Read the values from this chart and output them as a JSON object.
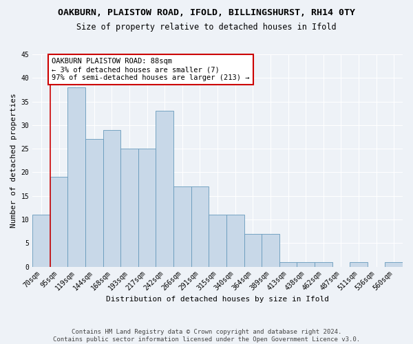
{
  "title1": "OAKBURN, PLAISTOW ROAD, IFOLD, BILLINGSHURST, RH14 0TY",
  "title2": "Size of property relative to detached houses in Ifold",
  "xlabel": "Distribution of detached houses by size in Ifold",
  "ylabel": "Number of detached properties",
  "categories": [
    "70sqm",
    "95sqm",
    "119sqm",
    "144sqm",
    "168sqm",
    "193sqm",
    "217sqm",
    "242sqm",
    "266sqm",
    "291sqm",
    "315sqm",
    "340sqm",
    "364sqm",
    "389sqm",
    "413sqm",
    "438sqm",
    "462sqm",
    "487sqm",
    "511sqm",
    "536sqm",
    "560sqm"
  ],
  "values": [
    11,
    19,
    38,
    27,
    29,
    25,
    25,
    33,
    17,
    17,
    11,
    11,
    7,
    7,
    1,
    1,
    1,
    0,
    1,
    0,
    1
  ],
  "bar_color": "#c8d8e8",
  "bar_edge_color": "#6699bb",
  "annotation_title": "OAKBURN PLAISTOW ROAD: 88sqm",
  "annotation_line1": "← 3% of detached houses are smaller (7)",
  "annotation_line2": "97% of semi-detached houses are larger (213) →",
  "annotation_box_color": "#ffffff",
  "annotation_box_edge": "#cc0000",
  "vline_color": "#cc0000",
  "ylim": [
    0,
    45
  ],
  "yticks": [
    0,
    5,
    10,
    15,
    20,
    25,
    30,
    35,
    40,
    45
  ],
  "footnote": "Contains HM Land Registry data © Crown copyright and database right 2024.\nContains public sector information licensed under the Open Government Licence v3.0.",
  "bg_color": "#eef2f7",
  "grid_color": "#ffffff",
  "title_fontsize": 9.5,
  "subtitle_fontsize": 8.5,
  "tick_fontsize": 7,
  "label_fontsize": 8,
  "footnote_fontsize": 6.5,
  "annotation_fontsize": 7.5
}
